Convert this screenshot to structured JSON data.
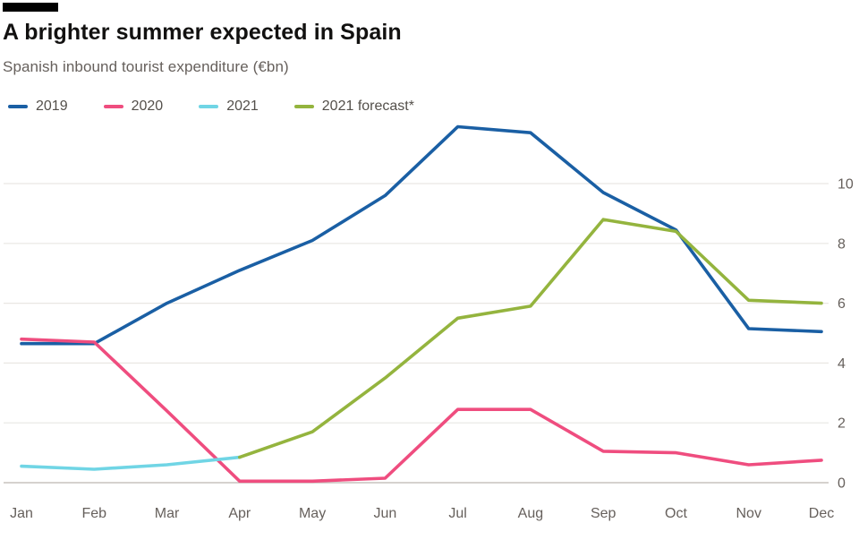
{
  "header": {
    "title": "A brighter summer expected in Spain",
    "subtitle": "Spanish inbound tourist expenditure (€bn)"
  },
  "colors": {
    "background": "#ffffff",
    "grid_line": "#e9e7e3",
    "zero_line": "#c7c3bd",
    "axis_text": "#66605c",
    "title_text": "#121110",
    "subtitle_text": "#66605c",
    "legend_text": "#54504b",
    "ft_bar": "#000000"
  },
  "chart_data": {
    "type": "line",
    "title": "A brighter summer expected in Spain",
    "subtitle": "Spanish inbound tourist expenditure (€bn)",
    "x": [
      "Jan",
      "Feb",
      "Mar",
      "Apr",
      "May",
      "Jun",
      "Jul",
      "Aug",
      "Sep",
      "Oct",
      "Nov",
      "Dec"
    ],
    "series": [
      {
        "name": "2019",
        "color": "#1a5fa4",
        "values": [
          4.65,
          4.65,
          6.0,
          7.1,
          8.1,
          9.6,
          11.9,
          11.7,
          9.7,
          8.45,
          5.15,
          5.05
        ]
      },
      {
        "name": "2020",
        "color": "#ef4d7f",
        "values": [
          4.8,
          4.7,
          2.4,
          0.05,
          0.05,
          0.15,
          2.45,
          2.45,
          1.05,
          1.0,
          0.6,
          0.75
        ]
      },
      {
        "name": "2021",
        "color": "#70d5e5",
        "values": [
          0.55,
          0.45,
          0.6,
          0.85,
          null,
          null,
          null,
          null,
          null,
          null,
          null,
          null
        ]
      },
      {
        "name": "2021 forecast*",
        "color": "#94b43e",
        "values": [
          null,
          null,
          null,
          0.85,
          1.7,
          3.5,
          5.5,
          5.9,
          8.8,
          8.4,
          6.1,
          6.0
        ]
      }
    ],
    "ylabel": "",
    "xlabel": "",
    "ylim": [
      0,
      10
    ],
    "yticks": [
      0,
      2,
      4,
      6,
      8,
      10
    ],
    "y_axis_side": "right",
    "grid": true,
    "legend_position": "top"
  }
}
